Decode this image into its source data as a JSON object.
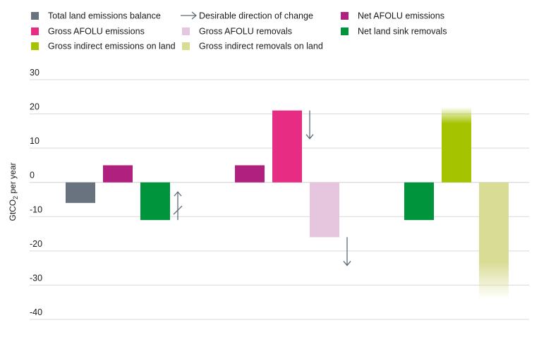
{
  "chart_data": {
    "type": "bar",
    "title": "",
    "xlabel": "",
    "ylabel": "GtCO",
    "ylabel_sub": "2",
    "ylabel_suffix": " per year",
    "ylim": [
      -40,
      30
    ],
    "yticks": [
      30,
      20,
      10,
      0,
      -10,
      -20,
      -30,
      -40
    ],
    "ytick_labels": [
      "30",
      "20",
      "10",
      "0",
      "-10",
      "-20",
      "-30",
      "-40"
    ],
    "grid": true,
    "legend_position": "top",
    "legend": [
      {
        "key": "total_balance",
        "label": "Total land emissions balance",
        "color": "#68737f",
        "marker": "square"
      },
      {
        "key": "direction",
        "label": "Desirable direction of change",
        "color": "#5e6b78",
        "marker": "arrow"
      },
      {
        "key": "net_afolu",
        "label": "Net AFOLU emissions",
        "color": "#b0207f",
        "marker": "square"
      },
      {
        "key": "gross_afolu_emissions",
        "label": "Gross AFOLU emissions",
        "color": "#e72c84",
        "marker": "square"
      },
      {
        "key": "gross_afolu_removals",
        "label": "Gross AFOLU removals",
        "color": "#e6c6de",
        "marker": "square"
      },
      {
        "key": "net_land_sink",
        "label": "Net land sink removals",
        "color": "#00943d",
        "marker": "square"
      },
      {
        "key": "gross_indirect_emissions",
        "label": "Gross indirect emissions on land",
        "color": "#a6c300",
        "marker": "square"
      },
      {
        "key": "gross_indirect_removals",
        "label": "Gross indirect removals on land",
        "color": "#d9dc95",
        "marker": "square"
      }
    ],
    "groups": [
      {
        "bars": [
          {
            "series": "total_balance",
            "value": -6
          },
          {
            "series": "net_afolu",
            "value": 5
          },
          {
            "series": "net_land_sink",
            "value": -11
          }
        ]
      },
      {
        "bars": [
          {
            "series": "net_afolu",
            "value": 5
          },
          {
            "series": "gross_afolu_emissions",
            "value": 21
          },
          {
            "series": "gross_afolu_removals",
            "value": -16
          }
        ]
      },
      {
        "bars": [
          {
            "series": "net_land_sink",
            "value": -11
          },
          {
            "series": "gross_indirect_emissions",
            "value": 22,
            "uncertain": true
          },
          {
            "series": "gross_indirect_removals",
            "value": -34,
            "uncertain": true
          }
        ]
      }
    ],
    "direction_arrows": [
      {
        "group": 0,
        "bar": 2,
        "direction": "up",
        "note": "slashed"
      },
      {
        "group": 1,
        "bar": 1,
        "direction": "down"
      },
      {
        "group": 1,
        "bar": 2,
        "direction": "down"
      }
    ]
  }
}
